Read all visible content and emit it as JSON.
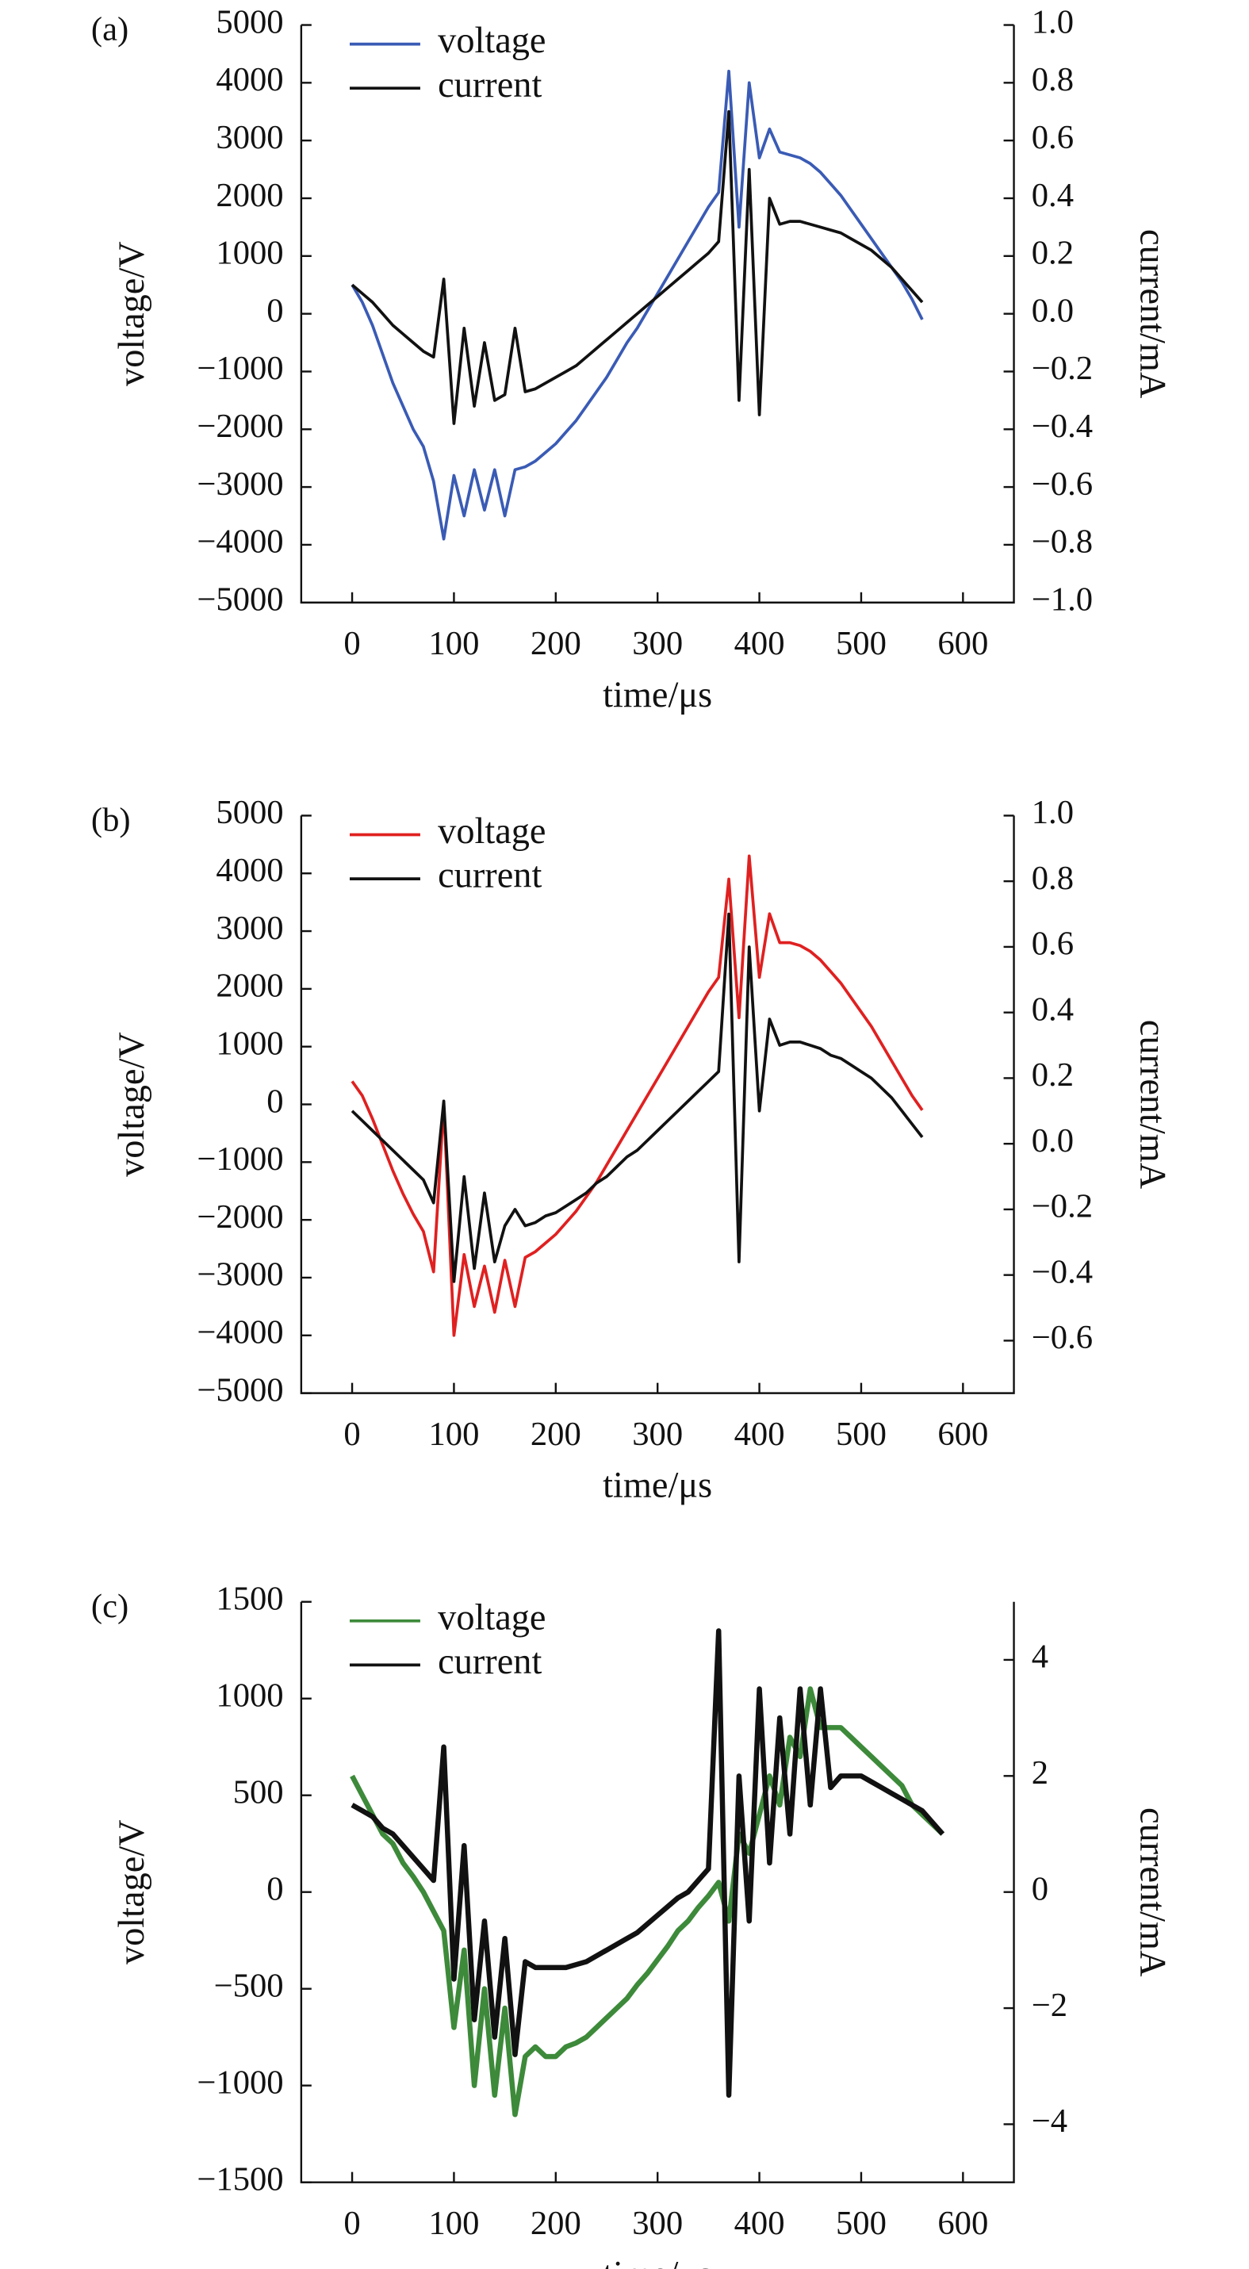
{
  "chart_data": [
    {
      "type": "line",
      "panel_label": "(a)",
      "xlabel": "time/μs",
      "ylabel": "voltage/V",
      "y2label": "current/mA",
      "legend": "upper left",
      "xlim": [
        -50,
        650
      ],
      "xticks": [
        0,
        100,
        200,
        300,
        400,
        500,
        600
      ],
      "ylim": [
        -5000,
        5000
      ],
      "yticks": [
        {
          "value": -5000,
          "label": "−5000"
        },
        {
          "value": -4000,
          "label": "−4000"
        },
        {
          "value": -3000,
          "label": "−3000"
        },
        {
          "value": -2000,
          "label": "−2000"
        },
        {
          "value": -1000,
          "label": "−1000"
        },
        0,
        1000,
        2000,
        3000,
        4000,
        5000
      ],
      "y2lim": [
        -1.0,
        1.0
      ],
      "y2ticks": [
        {
          "value": -1.0,
          "label": "−1.0"
        },
        {
          "value": -0.8,
          "label": "−0.8"
        },
        {
          "value": -0.6,
          "label": "−0.6"
        },
        {
          "value": -0.4,
          "label": "−0.4"
        },
        {
          "value": -0.2,
          "label": "−0.2"
        },
        {
          "value": 0.0,
          "label": "0.0"
        },
        0.2,
        0.4,
        0.6,
        0.8,
        {
          "value": 1.0,
          "label": "1.0"
        }
      ],
      "x": [
        0,
        10,
        20,
        30,
        40,
        50,
        60,
        70,
        80,
        90,
        100,
        110,
        120,
        130,
        140,
        150,
        160,
        170,
        180,
        190,
        200,
        210,
        220,
        230,
        240,
        250,
        260,
        270,
        280,
        290,
        300,
        310,
        320,
        330,
        340,
        350,
        360,
        370,
        380,
        390,
        400,
        410,
        420,
        430,
        440,
        450,
        460,
        470,
        480,
        490,
        500,
        510,
        520,
        530,
        540,
        550,
        560
      ],
      "series": [
        {
          "name": "voltage",
          "color": "#3a5bb5",
          "axis": "y",
          "values": [
            500,
            200,
            -200,
            -700,
            -1200,
            -1600,
            -2000,
            -2300,
            -2900,
            -3900,
            -2800,
            -3500,
            -2700,
            -3400,
            -2700,
            -3500,
            -2700,
            -2650,
            -2550,
            -2400,
            -2250,
            -2050,
            -1850,
            -1600,
            -1350,
            -1100,
            -800,
            -500,
            -250,
            50,
            350,
            650,
            950,
            1250,
            1550,
            1850,
            2100,
            4200,
            1500,
            4000,
            2700,
            3200,
            2800,
            2750,
            2700,
            2600,
            2450,
            2250,
            2050,
            1800,
            1550,
            1300,
            1050,
            800,
            550,
            250,
            -100
          ]
        },
        {
          "name": "current",
          "color": "#111111",
          "axis": "y2",
          "values": [
            0.1,
            0.07,
            0.04,
            0.0,
            -0.04,
            -0.07,
            -0.1,
            -0.13,
            -0.15,
            0.12,
            -0.38,
            -0.05,
            -0.32,
            -0.1,
            -0.3,
            -0.28,
            -0.05,
            -0.27,
            -0.26,
            -0.24,
            -0.22,
            -0.2,
            -0.18,
            -0.15,
            -0.12,
            -0.09,
            -0.06,
            -0.03,
            0.0,
            0.03,
            0.06,
            0.09,
            0.12,
            0.15,
            0.18,
            0.21,
            0.25,
            0.7,
            -0.3,
            0.5,
            -0.35,
            0.4,
            0.31,
            0.32,
            0.32,
            0.31,
            0.3,
            0.29,
            0.28,
            0.26,
            0.24,
            0.22,
            0.19,
            0.16,
            0.12,
            0.08,
            0.04
          ]
        }
      ]
    },
    {
      "type": "line",
      "panel_label": "(b)",
      "xlabel": "time/μs",
      "ylabel": "voltage/V",
      "y2label": "current/mA",
      "legend": "upper left",
      "xlim": [
        -50,
        650
      ],
      "xticks": [
        0,
        100,
        200,
        300,
        400,
        500,
        600
      ],
      "ylim": [
        -5000,
        5000
      ],
      "yticks": [
        {
          "value": -5000,
          "label": "−5000"
        },
        {
          "value": -4000,
          "label": "−4000"
        },
        {
          "value": -3000,
          "label": "−3000"
        },
        {
          "value": -2000,
          "label": "−2000"
        },
        {
          "value": -1000,
          "label": "−1000"
        },
        0,
        1000,
        2000,
        3000,
        4000,
        5000
      ],
      "y2lim": [
        -0.76,
        1.0
      ],
      "y2ticks": [
        {
          "value": -0.6,
          "label": "−0.6"
        },
        {
          "value": -0.4,
          "label": "−0.4"
        },
        {
          "value": -0.2,
          "label": "−0.2"
        },
        {
          "value": 0.0,
          "label": "0.0"
        },
        0.2,
        0.4,
        0.6,
        0.8,
        {
          "value": 1.0,
          "label": "1.0"
        }
      ],
      "x": [
        0,
        10,
        20,
        30,
        40,
        50,
        60,
        70,
        80,
        90,
        100,
        110,
        120,
        130,
        140,
        150,
        160,
        170,
        180,
        190,
        200,
        210,
        220,
        230,
        240,
        250,
        260,
        270,
        280,
        290,
        300,
        310,
        320,
        330,
        340,
        350,
        360,
        370,
        380,
        390,
        400,
        410,
        420,
        430,
        440,
        450,
        460,
        470,
        480,
        490,
        500,
        510,
        520,
        530,
        540,
        550,
        560
      ],
      "series": [
        {
          "name": "voltage",
          "color": "#e02020",
          "axis": "y",
          "values": [
            400,
            150,
            -250,
            -700,
            -1150,
            -1550,
            -1900,
            -2200,
            -2900,
            0,
            -4000,
            -2600,
            -3500,
            -2800,
            -3600,
            -2700,
            -3500,
            -2650,
            -2550,
            -2400,
            -2250,
            -2050,
            -1850,
            -1600,
            -1350,
            -1050,
            -750,
            -450,
            -150,
            150,
            450,
            750,
            1050,
            1350,
            1650,
            1950,
            2200,
            3900,
            1500,
            4300,
            2200,
            3300,
            2800,
            2800,
            2750,
            2650,
            2500,
            2300,
            2100,
            1850,
            1600,
            1350,
            1050,
            750,
            450,
            150,
            -100
          ]
        },
        {
          "name": "current",
          "color": "#111111",
          "axis": "y2",
          "values": [
            0.1,
            0.07,
            0.04,
            0.01,
            -0.02,
            -0.05,
            -0.08,
            -0.11,
            -0.18,
            0.13,
            -0.42,
            -0.1,
            -0.38,
            -0.15,
            -0.36,
            -0.25,
            -0.2,
            -0.25,
            -0.24,
            -0.22,
            -0.21,
            -0.19,
            -0.17,
            -0.15,
            -0.12,
            -0.1,
            -0.07,
            -0.04,
            -0.02,
            0.01,
            0.04,
            0.07,
            0.1,
            0.13,
            0.16,
            0.19,
            0.22,
            0.7,
            -0.36,
            0.6,
            0.1,
            0.38,
            0.3,
            0.31,
            0.31,
            0.3,
            0.29,
            0.27,
            0.26,
            0.24,
            0.22,
            0.2,
            0.17,
            0.14,
            0.1,
            0.06,
            0.02
          ]
        }
      ]
    },
    {
      "type": "line",
      "panel_label": "(c)",
      "xlabel": "time/μs",
      "ylabel": "voltage/V",
      "y2label": "current/mA",
      "legend": "upper left",
      "xlim": [
        -50,
        650
      ],
      "xticks": [
        0,
        100,
        200,
        300,
        400,
        500,
        600
      ],
      "ylim": [
        -1500,
        1500
      ],
      "yticks": [
        {
          "value": -1500,
          "label": "−1500"
        },
        {
          "value": -1000,
          "label": "−1000"
        },
        {
          "value": -500,
          "label": "−500"
        },
        0,
        500,
        1000,
        1500
      ],
      "y2lim": [
        -5,
        5
      ],
      "y2ticks": [
        {
          "value": -4,
          "label": "−4"
        },
        {
          "value": -2,
          "label": "−2"
        },
        0,
        2,
        4
      ],
      "x": [
        0,
        10,
        20,
        30,
        40,
        50,
        60,
        70,
        80,
        90,
        100,
        110,
        120,
        130,
        140,
        150,
        160,
        170,
        180,
        190,
        200,
        210,
        220,
        230,
        240,
        250,
        260,
        270,
        280,
        290,
        300,
        310,
        320,
        330,
        340,
        350,
        360,
        370,
        380,
        390,
        400,
        410,
        420,
        430,
        440,
        450,
        460,
        470,
        480,
        490,
        500,
        510,
        520,
        530,
        540,
        550,
        560,
        570,
        580
      ],
      "series": [
        {
          "name": "voltage",
          "color": "#3d8a3a",
          "axis": "y",
          "values": [
            600,
            500,
            400,
            300,
            250,
            150,
            80,
            0,
            -100,
            -200,
            -700,
            -300,
            -1000,
            -500,
            -1050,
            -600,
            -1150,
            -850,
            -800,
            -850,
            -850,
            -800,
            -780,
            -750,
            -700,
            -650,
            -600,
            -550,
            -480,
            -420,
            -350,
            -280,
            -200,
            -150,
            -80,
            -20,
            50,
            -150,
            300,
            200,
            400,
            600,
            450,
            800,
            700,
            1050,
            850,
            850,
            850,
            800,
            750,
            700,
            650,
            600,
            550,
            450,
            400,
            350,
            300
          ]
        },
        {
          "name": "current",
          "color": "#111111",
          "axis": "y2",
          "values": [
            1.5,
            1.4,
            1.3,
            1.1,
            1.0,
            0.8,
            0.6,
            0.4,
            0.2,
            2.5,
            -1.5,
            0.8,
            -2.2,
            -0.5,
            -2.5,
            -0.8,
            -2.8,
            -1.2,
            -1.3,
            -1.3,
            -1.3,
            -1.3,
            -1.25,
            -1.2,
            -1.1,
            -1.0,
            -0.9,
            -0.8,
            -0.7,
            -0.55,
            -0.4,
            -0.25,
            -0.1,
            0.0,
            0.2,
            0.4,
            4.5,
            -3.5,
            2.0,
            -0.5,
            3.5,
            0.5,
            3.0,
            1.0,
            3.5,
            1.5,
            3.5,
            1.8,
            2.0,
            2.0,
            2.0,
            1.9,
            1.8,
            1.7,
            1.6,
            1.5,
            1.4,
            1.2,
            1.0
          ]
        }
      ]
    }
  ]
}
